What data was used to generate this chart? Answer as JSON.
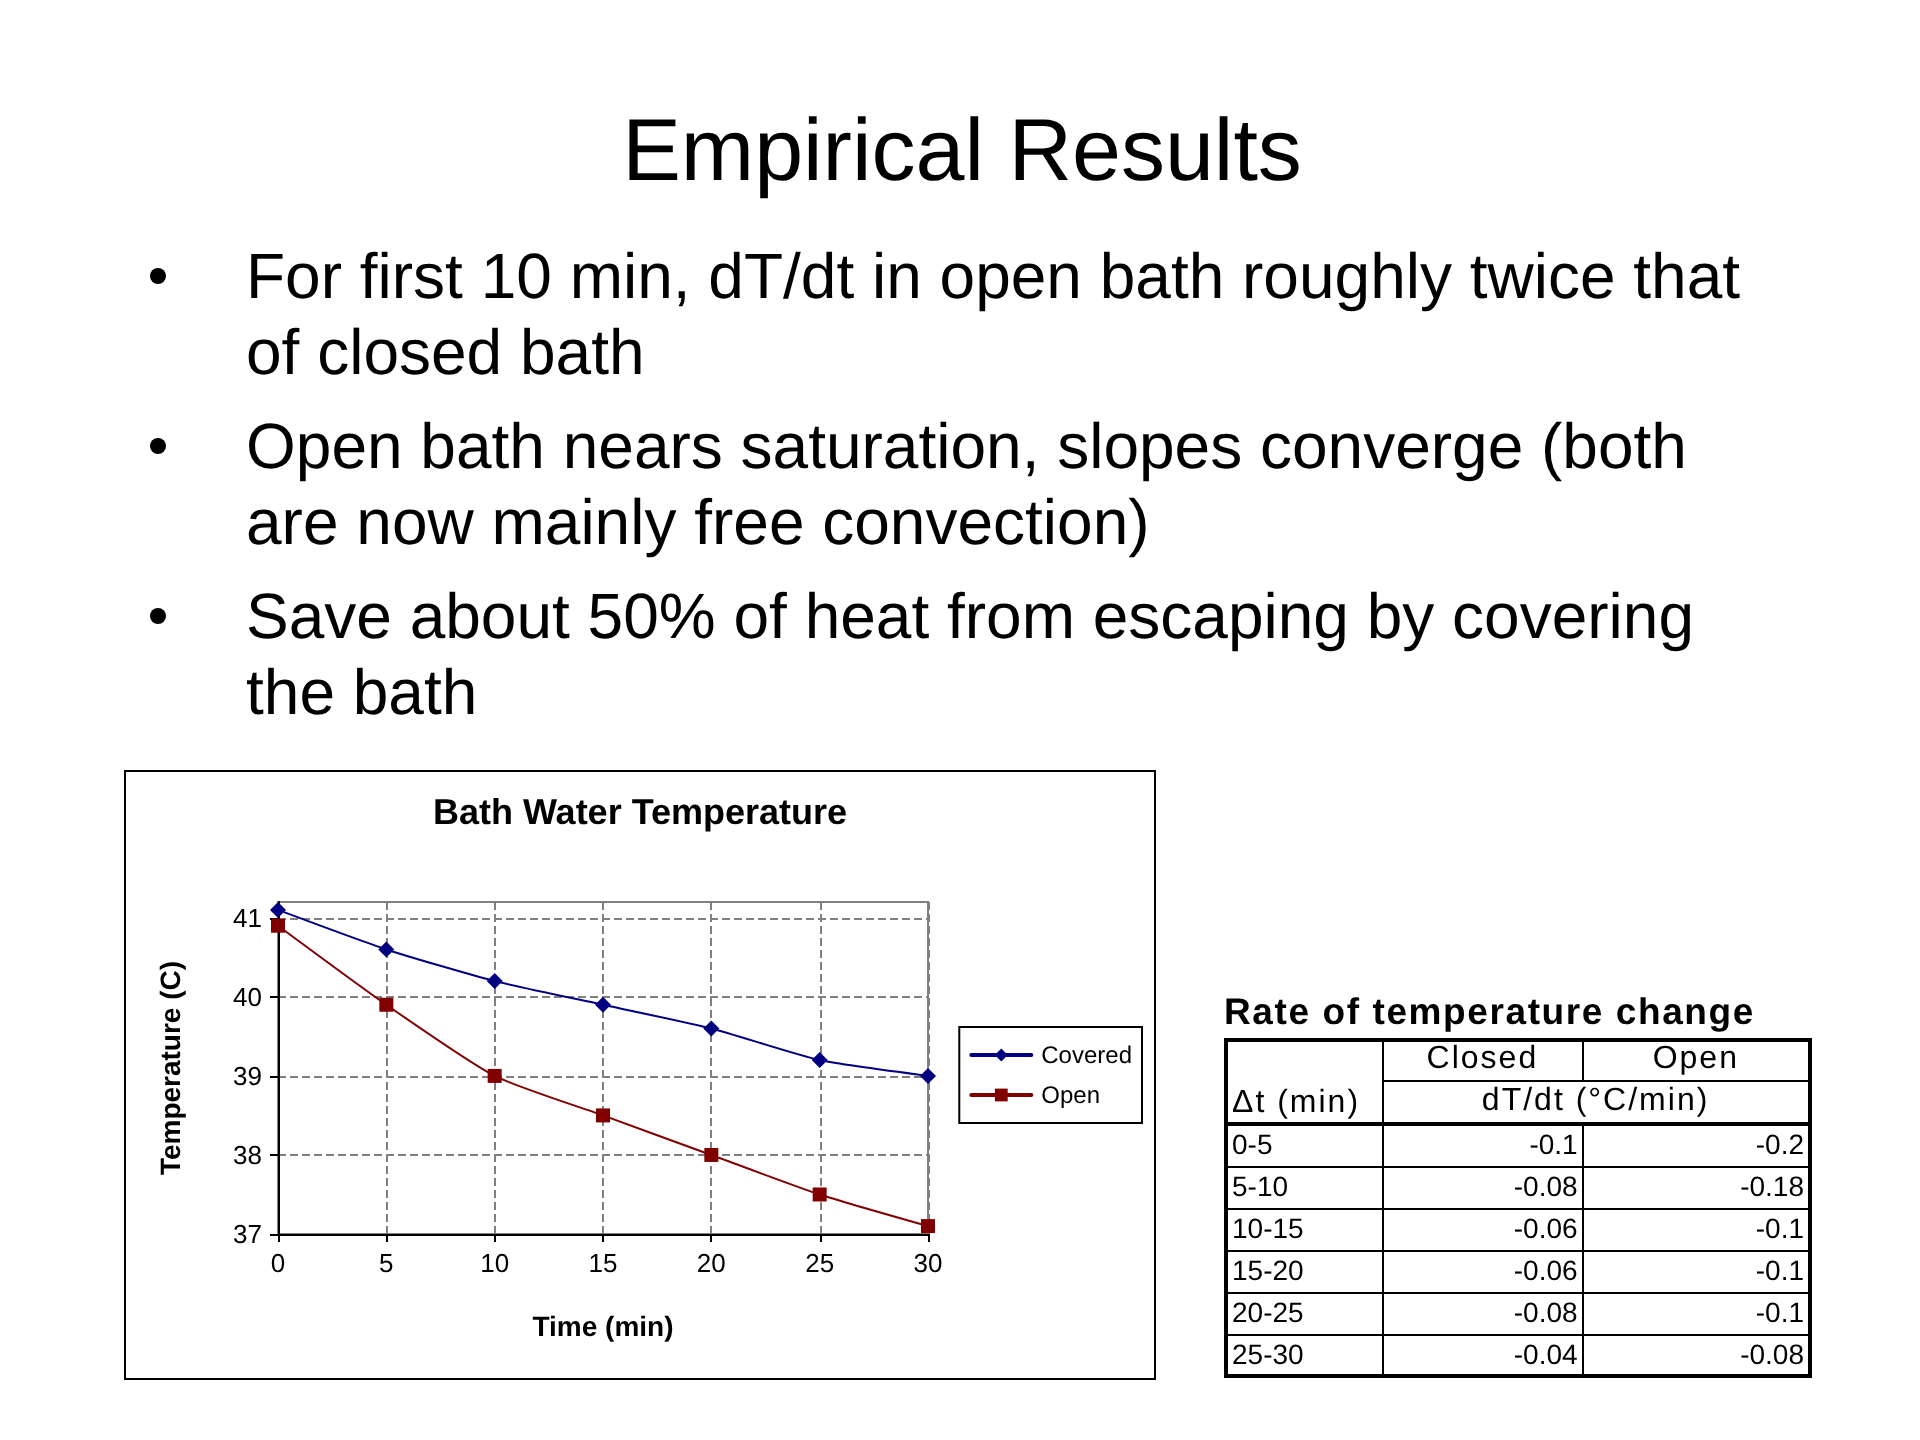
{
  "chart_data": [
    {
      "type": "other",
      "title": "Empirical Results",
      "annotations": [
        "For first 10 min, dT/dt in open bath roughly twice that of closed bath",
        "Open bath nears saturation, slopes converge (both are now mainly free convection)",
        "Save about 50% of heat from escaping by covering the bath"
      ]
    },
    {
      "type": "line",
      "title": "Bath Water Temperature",
      "xlabel": "Time (min)",
      "ylabel": "Temperature (C)",
      "x": [
        0,
        5,
        10,
        15,
        20,
        25,
        30
      ],
      "series": [
        {
          "name": "Covered",
          "color": "#000080",
          "marker": "diamond",
          "values": [
            41.1,
            40.6,
            40.2,
            39.9,
            39.6,
            39.2,
            39.0
          ]
        },
        {
          "name": "Open",
          "color": "#800000",
          "marker": "square",
          "values": [
            40.9,
            39.9,
            39.0,
            38.5,
            38.0,
            37.5,
            37.1
          ]
        }
      ],
      "xlim": [
        0,
        30
      ],
      "xticks": [
        0,
        5,
        10,
        15,
        20,
        25,
        30
      ],
      "ylim": [
        37,
        41.2
      ],
      "yticks": [
        37,
        38,
        39,
        40,
        41
      ],
      "grid": true,
      "legend": "right"
    },
    {
      "type": "other",
      "title": "Rate of temperature change",
      "xlabel": "Δt (min)",
      "ylabel": "dT/dt (°C/min)",
      "categories": [
        "0-5",
        "5-10",
        "10-15",
        "15-20",
        "20-25",
        "25-30"
      ],
      "series": [
        {
          "name": "Closed",
          "values": [
            -0.1,
            -0.08,
            -0.06,
            -0.06,
            -0.08,
            -0.04
          ]
        },
        {
          "name": "Open",
          "values": [
            -0.2,
            -0.18,
            -0.1,
            -0.1,
            -0.1,
            -0.08
          ]
        }
      ],
      "data_labels": true
    }
  ]
}
